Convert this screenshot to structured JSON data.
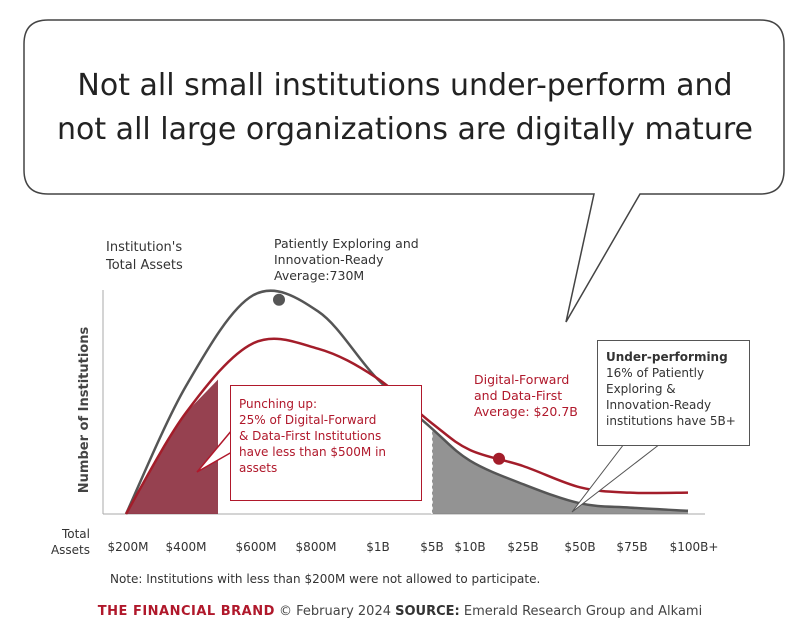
{
  "headline": {
    "line1": "Not all small institutions under-perform and",
    "line2": "not all large organizations are digitally mature"
  },
  "assets_label": {
    "line1": "Institution's",
    "line2": "Total Assets"
  },
  "patient_label": {
    "line1": "Patiently Exploring and",
    "line2": "Innovation-Ready",
    "line3": "Average:730M"
  },
  "digital_label": {
    "line1": "Digital-Forward",
    "line2": "and Data-First",
    "line3": "Average: $20.7B"
  },
  "punching_callout": {
    "line1": "Punching up:",
    "line2": "25% of Digital-Forward",
    "line3": "& Data-First Institutions",
    "line4": "have less than $500M in",
    "line5": "assets"
  },
  "underperf_callout": {
    "line1": "Under-performing",
    "line2": "16% of Patiently",
    "line3": "Exploring &",
    "line4": "Innovation-Ready",
    "line5": "institutions have 5B+"
  },
  "note": "Note: Institutions with less than $200M were not allowed to participate.",
  "footer": {
    "brand": "THE FINANCIAL BRAND",
    "date": "© February 2024",
    "source_label": "SOURCE:",
    "source": "Emerald Research Group and Alkami"
  },
  "chart_data": {
    "type": "area",
    "title": "",
    "xlabel": "Total Assets",
    "ylabel": "Number of Institutions",
    "x": [
      "$200M",
      "$400M",
      "$600M",
      "$800M",
      "$1B",
      "$5B",
      "$10B",
      "$25B",
      "$50B",
      "$75B",
      "$100B+"
    ],
    "series": [
      {
        "name": "Patiently Exploring and Innovation-Ready",
        "color": "#555555",
        "values": [
          0,
          120,
          205,
          190,
          128,
          80,
          50,
          28,
          10,
          6,
          3
        ]
      },
      {
        "name": "Digital-Forward and Data-First",
        "color": "#a31d2a",
        "values": [
          0,
          95,
          160,
          155,
          128,
          85,
          60,
          45,
          25,
          20,
          20
        ]
      }
    ],
    "markers": [
      {
        "series": "Patiently Exploring and Innovation-Ready",
        "label": "Average:730M"
      },
      {
        "series": "Digital-Forward and Data-First",
        "label": "Average: $20.7B"
      }
    ],
    "shaded_regions": [
      {
        "series": "Digital-Forward and Data-First",
        "from": "$200M",
        "to": "$500M",
        "color": "#8b2c3d"
      },
      {
        "series": "Patiently Exploring and Innovation-Ready",
        "from": "$5B",
        "to": "$100B+",
        "color": "#808080"
      }
    ],
    "grid": false,
    "legend": "none"
  }
}
